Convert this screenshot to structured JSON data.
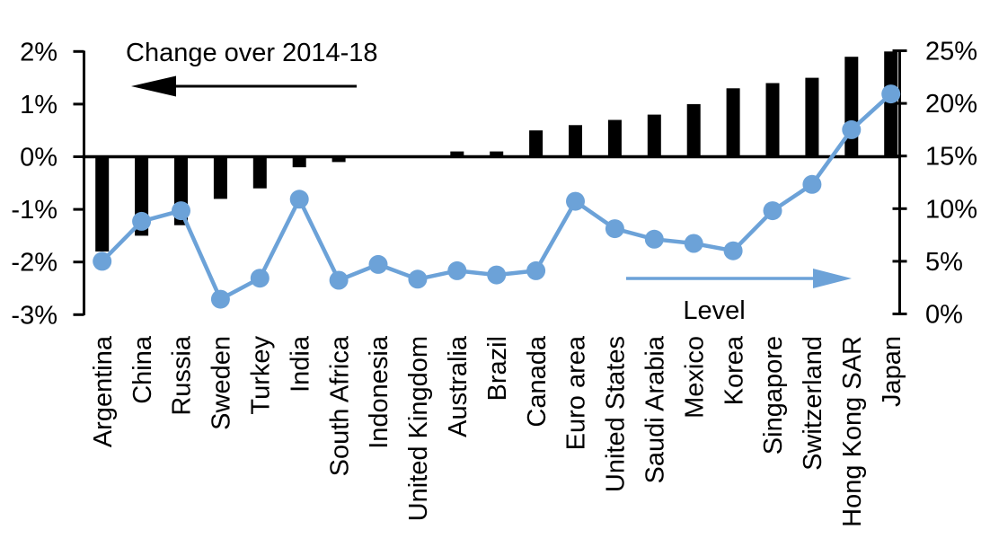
{
  "chart_data": {
    "type": "bar",
    "subtype": "dual-axis bar + line combo",
    "title": "Change over 2014-18",
    "categories": [
      "Argentina",
      "China",
      "Russia",
      "Sweden",
      "Turkey",
      "India",
      "South Africa",
      "Indonesia",
      "United Kingdom",
      "Australia",
      "Brazil",
      "Canada",
      "Euro area",
      "United States",
      "Saudi Arabia",
      "Mexico",
      "Korea",
      "Singapore",
      "Switzerland",
      "Hong Kong SAR",
      "Japan"
    ],
    "series": [
      {
        "name": "Change over 2014-18",
        "type": "bar",
        "axis": "left",
        "color": "#000000",
        "unit": "percentage points",
        "values": [
          -1.8,
          -1.5,
          -1.3,
          -0.8,
          -0.6,
          -0.2,
          -0.1,
          0,
          0,
          0.1,
          0.1,
          0.5,
          0.6,
          0.7,
          0.8,
          1.0,
          1.3,
          1.4,
          1.5,
          1.9,
          2.0
        ]
      },
      {
        "name": "Level",
        "type": "line",
        "axis": "right",
        "color": "#6CA2D8",
        "unit": "%",
        "values": [
          5.0,
          8.8,
          9.8,
          1.4,
          3.4,
          10.9,
          3.2,
          4.7,
          3.3,
          4.1,
          3.7,
          4.1,
          10.7,
          8.1,
          7.1,
          6.7,
          6.0,
          9.8,
          12.3,
          17.5,
          20.9
        ]
      }
    ],
    "left_axis": {
      "min": -3,
      "max": 2,
      "tick_step": 1,
      "tick_values": [
        2,
        1,
        0,
        -1,
        -2,
        -3
      ],
      "tick_labels": [
        "2%",
        "1%",
        "0%",
        "-1%",
        "-2%",
        "-3%"
      ]
    },
    "right_axis": {
      "min": 0,
      "max": 25,
      "tick_step": 5,
      "tick_values": [
        25,
        20,
        15,
        10,
        5,
        0
      ],
      "tick_labels": [
        "25%",
        "20%",
        "15%",
        "10%",
        "5%",
        "0%"
      ]
    },
    "annotations": {
      "bar_label": {
        "text": "Change over 2014-18",
        "arrow_direction": "left",
        "color": "#000000"
      },
      "line_label": {
        "text": "Level",
        "arrow_direction": "right",
        "color": "#6CA2D8"
      }
    },
    "grid": false,
    "legend_position": "in-plot arrow annotations"
  },
  "colors": {
    "bar": "#000000",
    "line": "#6CA2D8",
    "axis": "#000000",
    "background": "#ffffff"
  }
}
